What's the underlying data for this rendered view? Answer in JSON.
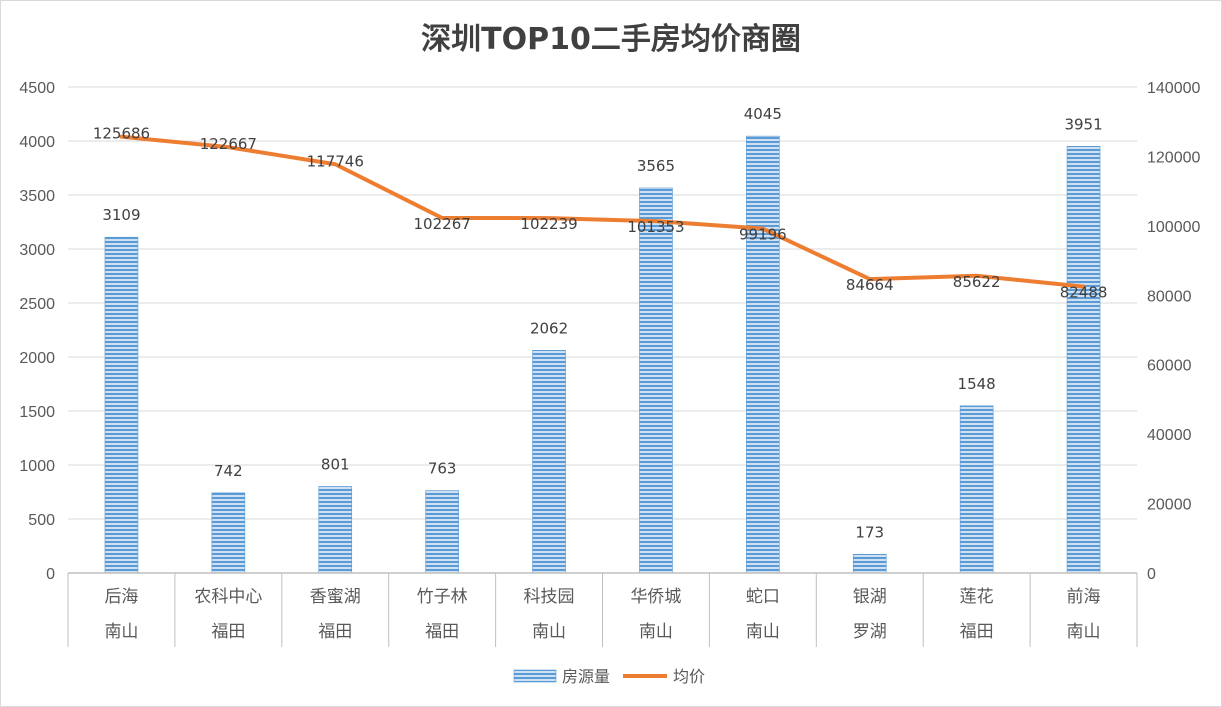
{
  "chart_data": {
    "type": "bar+line",
    "title": "深圳TOP10二手房均价商圈",
    "categories": [
      {
        "name": "后海",
        "district": "南山"
      },
      {
        "name": "农科中心",
        "district": "福田"
      },
      {
        "name": "香蜜湖",
        "district": "福田"
      },
      {
        "name": "竹子林",
        "district": "福田"
      },
      {
        "name": "科技园",
        "district": "南山"
      },
      {
        "name": "华侨城",
        "district": "南山"
      },
      {
        "name": "蛇口",
        "district": "南山"
      },
      {
        "name": "银湖",
        "district": "罗湖"
      },
      {
        "name": "莲花",
        "district": "福田"
      },
      {
        "name": "前海",
        "district": "南山"
      }
    ],
    "series": [
      {
        "name": "房源量",
        "type": "bar",
        "axis": "left",
        "color": "#5B9BD5",
        "values": [
          3109,
          742,
          801,
          763,
          2062,
          3565,
          4045,
          173,
          1548,
          3951
        ]
      },
      {
        "name": "均价",
        "type": "line",
        "axis": "right",
        "color": "#ED7D31",
        "values": [
          125686,
          122667,
          117746,
          102267,
          102239,
          101353,
          99196,
          84664,
          85622,
          82488
        ]
      }
    ],
    "y_left": {
      "min": 0,
      "max": 4500,
      "ticks": [
        "0",
        "500",
        "1000",
        "1500",
        "2000",
        "2500",
        "3000",
        "3500",
        "4000",
        "4500"
      ]
    },
    "y_right": {
      "min": 0,
      "max": 140000,
      "ticks": [
        "0",
        "20000",
        "40000",
        "60000",
        "80000",
        "100000",
        "120000",
        "140000"
      ]
    },
    "grid": true,
    "legend": "bottom"
  }
}
